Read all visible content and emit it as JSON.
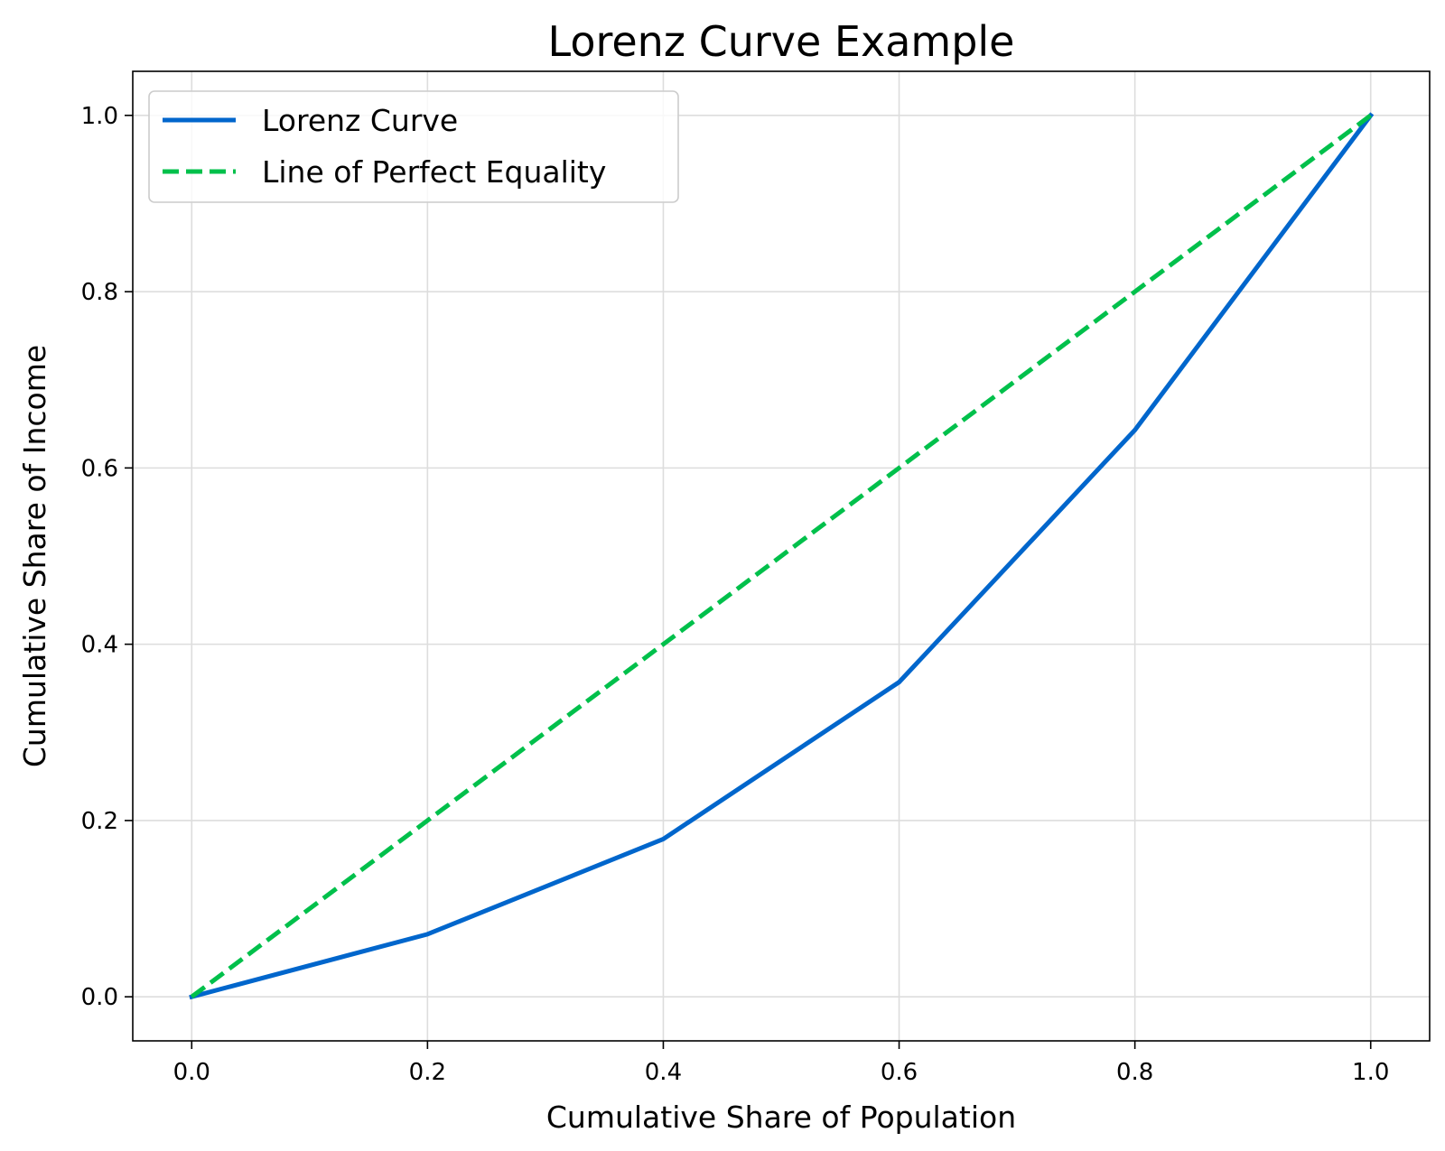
{
  "chart_data": {
    "type": "line",
    "title": "Lorenz Curve Example",
    "xlabel": "Cumulative Share of Population",
    "ylabel": "Cumulative Share of Income",
    "xlim": [
      -0.05,
      1.05
    ],
    "ylim": [
      -0.05,
      1.05
    ],
    "xticks": [
      0.0,
      0.2,
      0.4,
      0.6,
      0.8,
      1.0
    ],
    "xtick_labels": [
      "0.0",
      "0.2",
      "0.4",
      "0.6",
      "0.8",
      "1.0"
    ],
    "yticks": [
      0.0,
      0.2,
      0.4,
      0.6,
      0.8,
      1.0
    ],
    "ytick_labels": [
      "0.0",
      "0.2",
      "0.4",
      "0.6",
      "0.8",
      "1.0"
    ],
    "grid": true,
    "legend_position": "top-left",
    "series": [
      {
        "name": "Lorenz Curve",
        "color": "#0066cc",
        "style": "solid",
        "x": [
          0.0,
          0.2,
          0.4,
          0.6,
          0.8,
          1.0
        ],
        "y": [
          0.0,
          0.071,
          0.179,
          0.357,
          0.643,
          1.0
        ]
      },
      {
        "name": "Line of Perfect Equality",
        "color": "#00c04b",
        "style": "dashed",
        "x": [
          0.0,
          1.0
        ],
        "y": [
          0.0,
          1.0
        ]
      }
    ]
  }
}
